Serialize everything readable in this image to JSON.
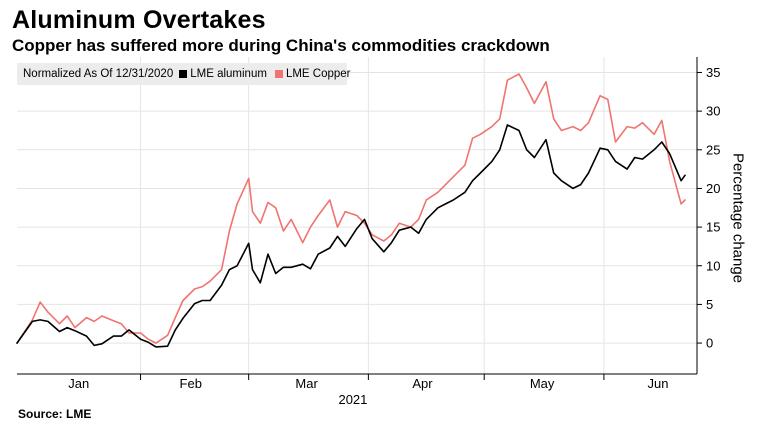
{
  "title": "Aluminum Overtakes",
  "subtitle": "Copper has suffered more during China's commodities crackdown",
  "source": "Source: LME",
  "legend": {
    "normalized_label": "Normalized As Of 12/31/2020",
    "items": [
      {
        "label": "LME aluminum",
        "color": "#000000"
      },
      {
        "label": "LME Copper",
        "color": "#f07470"
      }
    ]
  },
  "chart_data": {
    "type": "line",
    "ylabel": "Percentage change",
    "xlabel": "2021",
    "ylim": [
      -4,
      37
    ],
    "y_ticks": [
      0,
      5,
      10,
      15,
      20,
      25,
      30,
      35
    ],
    "y_tick_labels": [
      "0",
      "5",
      "10",
      "15",
      "20",
      "25",
      "30",
      "35"
    ],
    "x_range": [
      "2020-12-31",
      "2021-06-22"
    ],
    "month_labels": [
      "Jan",
      "Feb",
      "Mar",
      "Apr",
      "May",
      "Jun"
    ],
    "month_label_dates": [
      "2021-01-16",
      "2021-02-14",
      "2021-03-16",
      "2021-04-15",
      "2021-05-16",
      "2021-06-15"
    ],
    "month_boundaries": [
      "2021-02-01",
      "2021-03-01",
      "2021-04-01",
      "2021-05-01",
      "2021-06-01"
    ],
    "grid": true,
    "series": [
      {
        "name": "LME aluminum",
        "color": "#000000",
        "points": [
          [
            "2020-12-31",
            0.0
          ],
          [
            "2021-01-04",
            2.8
          ],
          [
            "2021-01-06",
            3.0
          ],
          [
            "2021-01-08",
            2.8
          ],
          [
            "2021-01-11",
            1.5
          ],
          [
            "2021-01-13",
            2.0
          ],
          [
            "2021-01-15",
            1.6
          ],
          [
            "2021-01-18",
            0.9
          ],
          [
            "2021-01-20",
            -0.3
          ],
          [
            "2021-01-22",
            -0.1
          ],
          [
            "2021-01-25",
            0.9
          ],
          [
            "2021-01-27",
            0.9
          ],
          [
            "2021-01-29",
            1.7
          ],
          [
            "2021-02-01",
            0.5
          ],
          [
            "2021-02-03",
            0.1
          ],
          [
            "2021-02-05",
            -0.5
          ],
          [
            "2021-02-08",
            -0.4
          ],
          [
            "2021-02-10",
            1.7
          ],
          [
            "2021-02-12",
            3.2
          ],
          [
            "2021-02-15",
            5.1
          ],
          [
            "2021-02-17",
            5.5
          ],
          [
            "2021-02-19",
            5.5
          ],
          [
            "2021-02-22",
            7.5
          ],
          [
            "2021-02-24",
            9.5
          ],
          [
            "2021-02-26",
            10.0
          ],
          [
            "2021-03-01",
            12.9
          ],
          [
            "2021-03-02",
            9.5
          ],
          [
            "2021-03-04",
            7.8
          ],
          [
            "2021-03-06",
            11.5
          ],
          [
            "2021-03-08",
            9.0
          ],
          [
            "2021-03-10",
            9.8
          ],
          [
            "2021-03-12",
            9.8
          ],
          [
            "2021-03-15",
            10.2
          ],
          [
            "2021-03-17",
            9.6
          ],
          [
            "2021-03-19",
            11.5
          ],
          [
            "2021-03-22",
            12.3
          ],
          [
            "2021-03-24",
            13.8
          ],
          [
            "2021-03-26",
            12.5
          ],
          [
            "2021-03-29",
            14.8
          ],
          [
            "2021-03-31",
            16.0
          ],
          [
            "2021-04-02",
            13.5
          ],
          [
            "2021-04-05",
            11.8
          ],
          [
            "2021-04-07",
            13.0
          ],
          [
            "2021-04-09",
            14.6
          ],
          [
            "2021-04-12",
            15.0
          ],
          [
            "2021-04-14",
            14.2
          ],
          [
            "2021-04-16",
            16.0
          ],
          [
            "2021-04-19",
            17.5
          ],
          [
            "2021-04-21",
            18.0
          ],
          [
            "2021-04-23",
            18.5
          ],
          [
            "2021-04-26",
            19.5
          ],
          [
            "2021-04-28",
            21.0
          ],
          [
            "2021-04-30",
            22.0
          ],
          [
            "2021-05-03",
            23.5
          ],
          [
            "2021-05-05",
            25.0
          ],
          [
            "2021-05-07",
            28.2
          ],
          [
            "2021-05-10",
            27.5
          ],
          [
            "2021-05-12",
            25.0
          ],
          [
            "2021-05-14",
            24.0
          ],
          [
            "2021-05-17",
            26.3
          ],
          [
            "2021-05-19",
            22.0
          ],
          [
            "2021-05-21",
            21.0
          ],
          [
            "2021-05-24",
            20.0
          ],
          [
            "2021-05-26",
            20.5
          ],
          [
            "2021-05-28",
            22.0
          ],
          [
            "2021-05-31",
            25.2
          ],
          [
            "2021-06-02",
            25.0
          ],
          [
            "2021-06-04",
            23.5
          ],
          [
            "2021-06-07",
            22.5
          ],
          [
            "2021-06-09",
            24.0
          ],
          [
            "2021-06-11",
            23.8
          ],
          [
            "2021-06-14",
            25.0
          ],
          [
            "2021-06-16",
            26.0
          ],
          [
            "2021-06-18",
            24.5
          ],
          [
            "2021-06-21",
            21.0
          ],
          [
            "2021-06-22",
            21.7
          ]
        ]
      },
      {
        "name": "LME Copper",
        "color": "#f07470",
        "points": [
          [
            "2020-12-31",
            0.0
          ],
          [
            "2021-01-04",
            3.0
          ],
          [
            "2021-01-06",
            5.3
          ],
          [
            "2021-01-08",
            4.0
          ],
          [
            "2021-01-11",
            2.5
          ],
          [
            "2021-01-13",
            3.5
          ],
          [
            "2021-01-15",
            2.0
          ],
          [
            "2021-01-18",
            3.3
          ],
          [
            "2021-01-20",
            2.8
          ],
          [
            "2021-01-22",
            3.5
          ],
          [
            "2021-01-25",
            2.9
          ],
          [
            "2021-01-27",
            2.5
          ],
          [
            "2021-01-29",
            1.3
          ],
          [
            "2021-02-01",
            1.3
          ],
          [
            "2021-02-03",
            0.5
          ],
          [
            "2021-02-05",
            0.0
          ],
          [
            "2021-02-08",
            1.0
          ],
          [
            "2021-02-10",
            3.3
          ],
          [
            "2021-02-12",
            5.5
          ],
          [
            "2021-02-15",
            7.0
          ],
          [
            "2021-02-17",
            7.3
          ],
          [
            "2021-02-19",
            8.0
          ],
          [
            "2021-02-22",
            9.5
          ],
          [
            "2021-02-24",
            14.5
          ],
          [
            "2021-02-26",
            18.0
          ],
          [
            "2021-03-01",
            21.3
          ],
          [
            "2021-03-02",
            17.0
          ],
          [
            "2021-03-04",
            15.5
          ],
          [
            "2021-03-06",
            18.2
          ],
          [
            "2021-03-08",
            17.5
          ],
          [
            "2021-03-10",
            14.5
          ],
          [
            "2021-03-12",
            16.0
          ],
          [
            "2021-03-15",
            13.0
          ],
          [
            "2021-03-17",
            15.0
          ],
          [
            "2021-03-19",
            16.5
          ],
          [
            "2021-03-22",
            18.5
          ],
          [
            "2021-03-24",
            15.0
          ],
          [
            "2021-03-26",
            17.0
          ],
          [
            "2021-03-29",
            16.5
          ],
          [
            "2021-03-31",
            15.5
          ],
          [
            "2021-04-02",
            14.0
          ],
          [
            "2021-04-05",
            13.2
          ],
          [
            "2021-04-07",
            14.0
          ],
          [
            "2021-04-09",
            15.5
          ],
          [
            "2021-04-12",
            15.0
          ],
          [
            "2021-04-14",
            16.0
          ],
          [
            "2021-04-16",
            18.5
          ],
          [
            "2021-04-19",
            19.5
          ],
          [
            "2021-04-21",
            20.5
          ],
          [
            "2021-04-23",
            21.5
          ],
          [
            "2021-04-26",
            23.0
          ],
          [
            "2021-04-28",
            26.5
          ],
          [
            "2021-04-30",
            27.0
          ],
          [
            "2021-05-03",
            28.0
          ],
          [
            "2021-05-05",
            29.0
          ],
          [
            "2021-05-07",
            34.0
          ],
          [
            "2021-05-10",
            34.8
          ],
          [
            "2021-05-12",
            33.0
          ],
          [
            "2021-05-14",
            31.0
          ],
          [
            "2021-05-17",
            33.8
          ],
          [
            "2021-05-19",
            29.0
          ],
          [
            "2021-05-21",
            27.5
          ],
          [
            "2021-05-24",
            28.0
          ],
          [
            "2021-05-26",
            27.5
          ],
          [
            "2021-05-28",
            28.5
          ],
          [
            "2021-05-31",
            32.0
          ],
          [
            "2021-06-02",
            31.5
          ],
          [
            "2021-06-04",
            26.0
          ],
          [
            "2021-06-07",
            28.0
          ],
          [
            "2021-06-09",
            27.8
          ],
          [
            "2021-06-11",
            28.5
          ],
          [
            "2021-06-14",
            27.0
          ],
          [
            "2021-06-16",
            28.8
          ],
          [
            "2021-06-18",
            23.5
          ],
          [
            "2021-06-21",
            18.0
          ],
          [
            "2021-06-22",
            18.5
          ]
        ]
      }
    ]
  }
}
